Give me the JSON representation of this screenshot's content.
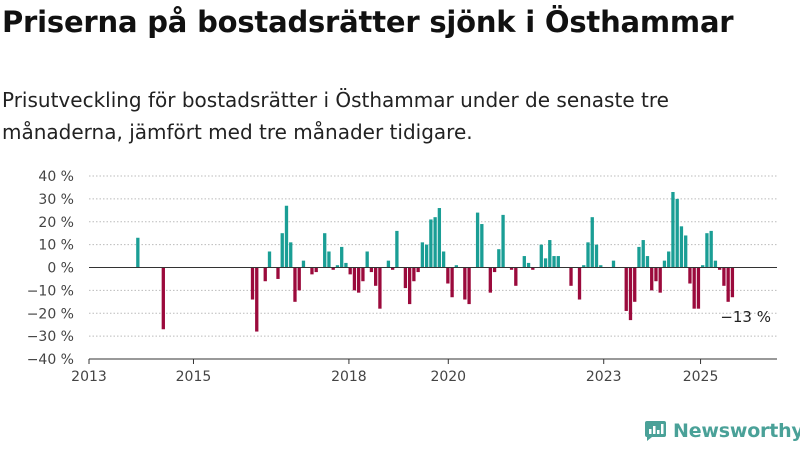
{
  "title": "Priserna på bostadsrätter sjönk i Östhammar",
  "subtitle": "Prisutveckling för bostadsrätter i Östhammar under de senaste tre månaderna, jämfört med tre månader tidigare.",
  "brand": {
    "name": "Newsworthy",
    "icon": "newsworthy-logo-icon"
  },
  "colors": {
    "positive": "#1a9e95",
    "negative": "#9b0a3c",
    "axis": "#333333",
    "grid": "#bbbbbb"
  },
  "chart_data": {
    "type": "bar",
    "ylim": [
      -40,
      40
    ],
    "y_ticks": [
      40,
      30,
      20,
      10,
      0,
      -10,
      -20,
      -30,
      -40
    ],
    "y_tick_labels": [
      "40 %",
      "30 %",
      "20 %",
      "10 %",
      "0 %",
      "−10 %",
      "−20 %",
      "−30 %",
      "−40 %"
    ],
    "x_ticks": [
      "2013",
      "2015",
      "2018",
      "2020",
      "2023",
      "2025"
    ],
    "annotation": "−13 %",
    "series": [
      {
        "values": [
          [
            "2013-12",
            13
          ],
          [
            "2014-06",
            -27
          ],
          [
            "2016-03",
            -14
          ],
          [
            "2016-04",
            -28
          ],
          [
            "2016-06",
            -6
          ],
          [
            "2016-07",
            7
          ],
          [
            "2016-09",
            -5
          ],
          [
            "2016-10",
            15
          ],
          [
            "2016-11",
            27
          ],
          [
            "2016-12",
            11
          ],
          [
            "2017-01",
            -15
          ],
          [
            "2017-02",
            -10
          ],
          [
            "2017-03",
            3
          ],
          [
            "2017-05",
            -3
          ],
          [
            "2017-06",
            -2
          ],
          [
            "2017-08",
            15
          ],
          [
            "2017-09",
            7
          ],
          [
            "2017-10",
            -1
          ],
          [
            "2017-11",
            1
          ],
          [
            "2017-12",
            9
          ],
          [
            "2018-01",
            2
          ],
          [
            "2018-02",
            -3
          ],
          [
            "2018-03",
            -10
          ],
          [
            "2018-04",
            -11
          ],
          [
            "2018-05",
            -6
          ],
          [
            "2018-06",
            7
          ],
          [
            "2018-07",
            -2
          ],
          [
            "2018-08",
            -8
          ],
          [
            "2018-09",
            -18
          ],
          [
            "2018-11",
            3
          ],
          [
            "2018-12",
            -1
          ],
          [
            "2019-01",
            16
          ],
          [
            "2019-03",
            -9
          ],
          [
            "2019-04",
            -16
          ],
          [
            "2019-05",
            -6
          ],
          [
            "2019-06",
            -2
          ],
          [
            "2019-07",
            11
          ],
          [
            "2019-08",
            10
          ],
          [
            "2019-09",
            21
          ],
          [
            "2019-10",
            22
          ],
          [
            "2019-11",
            26
          ],
          [
            "2019-12",
            7
          ],
          [
            "2020-01",
            -7
          ],
          [
            "2020-02",
            -13
          ],
          [
            "2020-03",
            1
          ],
          [
            "2020-05",
            -14
          ],
          [
            "2020-06",
            -16
          ],
          [
            "2020-08",
            24
          ],
          [
            "2020-09",
            19
          ],
          [
            "2020-11",
            -11
          ],
          [
            "2020-12",
            -2
          ],
          [
            "2021-01",
            8
          ],
          [
            "2021-02",
            23
          ],
          [
            "2021-04",
            -1
          ],
          [
            "2021-05",
            -8
          ],
          [
            "2021-07",
            5
          ],
          [
            "2021-08",
            2
          ],
          [
            "2021-09",
            -1
          ],
          [
            "2021-11",
            10
          ],
          [
            "2021-12",
            4
          ],
          [
            "2022-01",
            12
          ],
          [
            "2022-02",
            5
          ],
          [
            "2022-03",
            5
          ],
          [
            "2022-06",
            -8
          ],
          [
            "2022-08",
            -14
          ],
          [
            "2022-09",
            1
          ],
          [
            "2022-10",
            11
          ],
          [
            "2022-11",
            22
          ],
          [
            "2022-12",
            10
          ],
          [
            "2023-01",
            1
          ],
          [
            "2023-04",
            3
          ],
          [
            "2023-07",
            -19
          ],
          [
            "2023-08",
            -23
          ],
          [
            "2023-09",
            -15
          ],
          [
            "2023-10",
            9
          ],
          [
            "2023-11",
            12
          ],
          [
            "2023-12",
            5
          ],
          [
            "2024-01",
            -10
          ],
          [
            "2024-02",
            -6
          ],
          [
            "2024-03",
            -11
          ],
          [
            "2024-04",
            3
          ],
          [
            "2024-05",
            7
          ],
          [
            "2024-06",
            33
          ],
          [
            "2024-07",
            30
          ],
          [
            "2024-08",
            18
          ],
          [
            "2024-09",
            14
          ],
          [
            "2024-10",
            -7
          ],
          [
            "2024-11",
            -18
          ],
          [
            "2024-12",
            -18
          ],
          [
            "2025-01",
            1
          ],
          [
            "2025-02",
            15
          ],
          [
            "2025-03",
            16
          ],
          [
            "2025-04",
            3
          ],
          [
            "2025-05",
            -1
          ],
          [
            "2025-06",
            -8
          ],
          [
            "2025-07",
            -15
          ],
          [
            "2025-08",
            -13
          ]
        ]
      }
    ]
  }
}
